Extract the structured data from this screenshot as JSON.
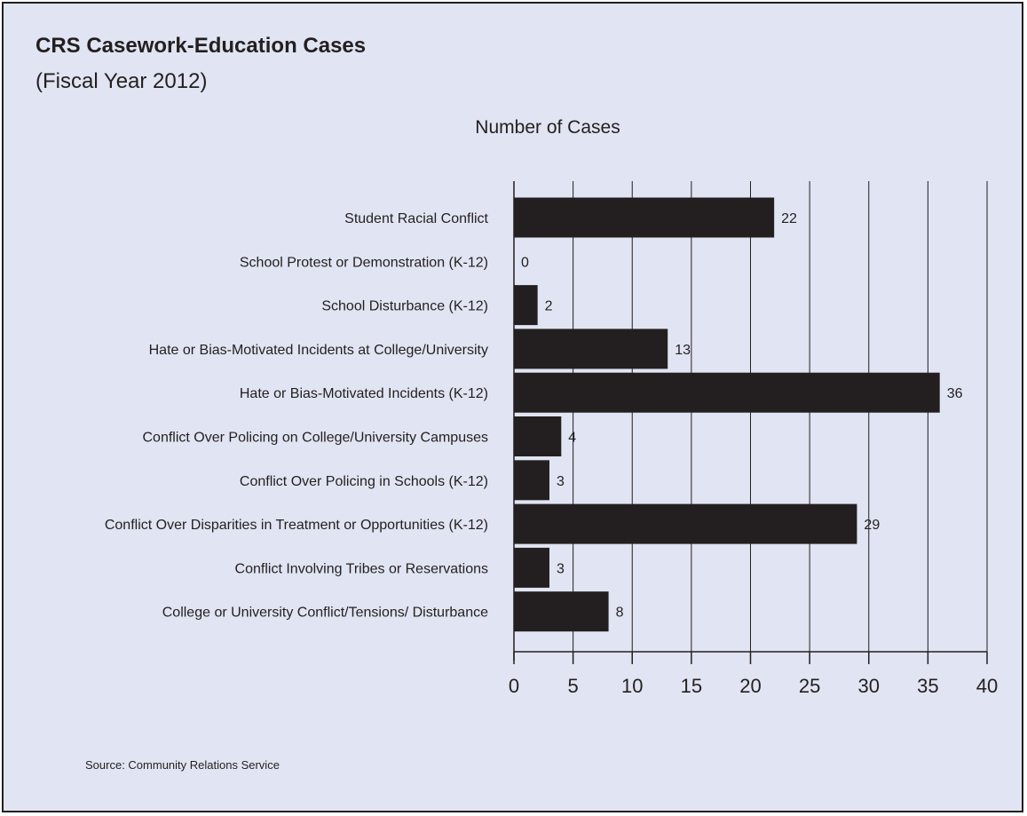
{
  "chart_data": {
    "type": "bar",
    "orientation": "horizontal",
    "title": "CRS Casework-Education Cases",
    "subtitle": "(Fiscal Year 2012)",
    "xlabel": "Number of Cases",
    "categories": [
      "Student Racial Conflict",
      "School Protest or Demonstration (K-12)",
      "School Disturbance (K-12)",
      "Hate or Bias-Motivated Incidents at College/University",
      "Hate or Bias-Motivated Incidents (K-12)",
      "Conflict Over Policing on College/University Campuses",
      "Conflict Over Policing in Schools (K-12)",
      "Conflict Over Disparities in Treatment or Opportunities (K-12)",
      "Conflict Involving Tribes or Reservations",
      "College or University Conflict/Tensions/ Disturbance"
    ],
    "values": [
      22,
      0,
      2,
      13,
      36,
      4,
      3,
      29,
      3,
      8
    ],
    "value_labels": [
      "22",
      "0",
      "2",
      "13",
      "36",
      "4",
      "3",
      "29",
      "3",
      "8"
    ],
    "xlim": [
      0,
      40
    ],
    "xticks": [
      0,
      5,
      10,
      15,
      20,
      25,
      30,
      35,
      40
    ],
    "grid": "vertical",
    "bar_color": "#231f20",
    "background_color": "#e1e4f2"
  },
  "source": "Source: Community Relations Service"
}
